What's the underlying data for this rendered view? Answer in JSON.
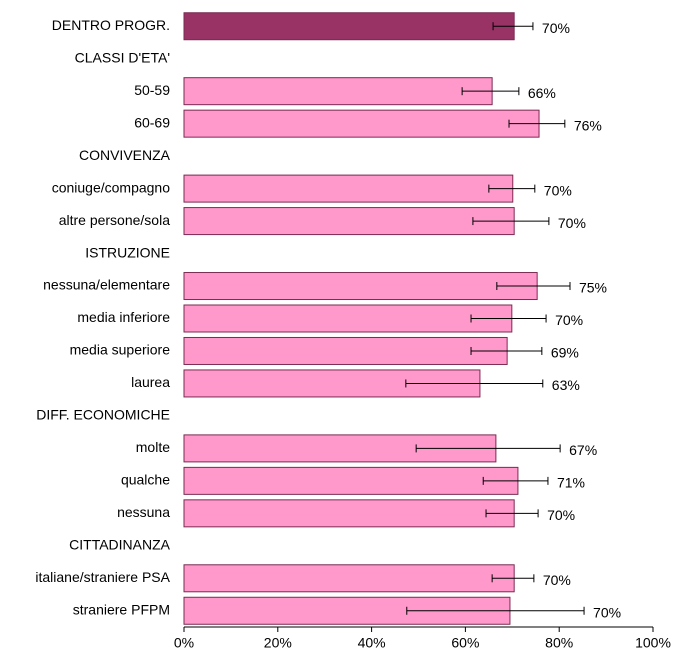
{
  "chart_data": {
    "type": "hbar",
    "categories": [
      "DENTRO PROGR.",
      "CLASSI D'ETA'",
      "50-59",
      "60-69",
      "CONVIVENZA",
      "coniuge/compagno",
      "altre persone/sola",
      "ISTRUZIONE",
      "nessuna/elementare",
      "media inferiore",
      "media superiore",
      "laurea",
      "DIFF. ECONOMICHE",
      "molte",
      "qualche",
      "nessuna",
      "CITTADINANZA",
      "italiane/straniere PSA",
      "straniere PFPM"
    ],
    "values": [
      70.4,
      null,
      65.7,
      75.7,
      null,
      70.1,
      70.4,
      null,
      75.3,
      69.9,
      68.9,
      63.1,
      null,
      66.5,
      71.2,
      70.4,
      null,
      70.4,
      69.5
    ],
    "value_labels": [
      "70%",
      null,
      "66%",
      "76%",
      null,
      "70%",
      "70%",
      null,
      "75%",
      "70%",
      "69%",
      "63%",
      null,
      "67%",
      "71%",
      "70%",
      null,
      "70%",
      "70%"
    ],
    "ci_low": [
      65.9,
      null,
      59.3,
      69.3,
      null,
      65.0,
      61.6,
      null,
      66.7,
      61.2,
      61.2,
      47.3,
      null,
      49.5,
      63.8,
      64.4,
      null,
      65.7,
      47.5
    ],
    "ci_high": [
      74.4,
      null,
      71.4,
      81.2,
      null,
      74.8,
      77.8,
      null,
      82.3,
      77.2,
      76.3,
      76.5,
      null,
      80.2,
      77.6,
      75.5,
      null,
      74.6,
      85.3
    ],
    "colors": [
      "#993366",
      null,
      "#ff99cc",
      "#ff99cc",
      null,
      "#ff99cc",
      "#ff99cc",
      null,
      "#ff99cc",
      "#ff99cc",
      "#ff99cc",
      "#ff99cc",
      null,
      "#ff99cc",
      "#ff99cc",
      "#ff99cc",
      null,
      "#ff99cc",
      "#ff99cc"
    ],
    "xlim": [
      0,
      100
    ],
    "xticks": [
      {
        "value": 0,
        "label": "0%"
      },
      {
        "value": 20,
        "label": "20%"
      },
      {
        "value": 40,
        "label": "40%"
      },
      {
        "value": 60,
        "label": "60%"
      },
      {
        "value": 80,
        "label": "80%"
      },
      {
        "value": 100,
        "label": "100%"
      }
    ]
  }
}
